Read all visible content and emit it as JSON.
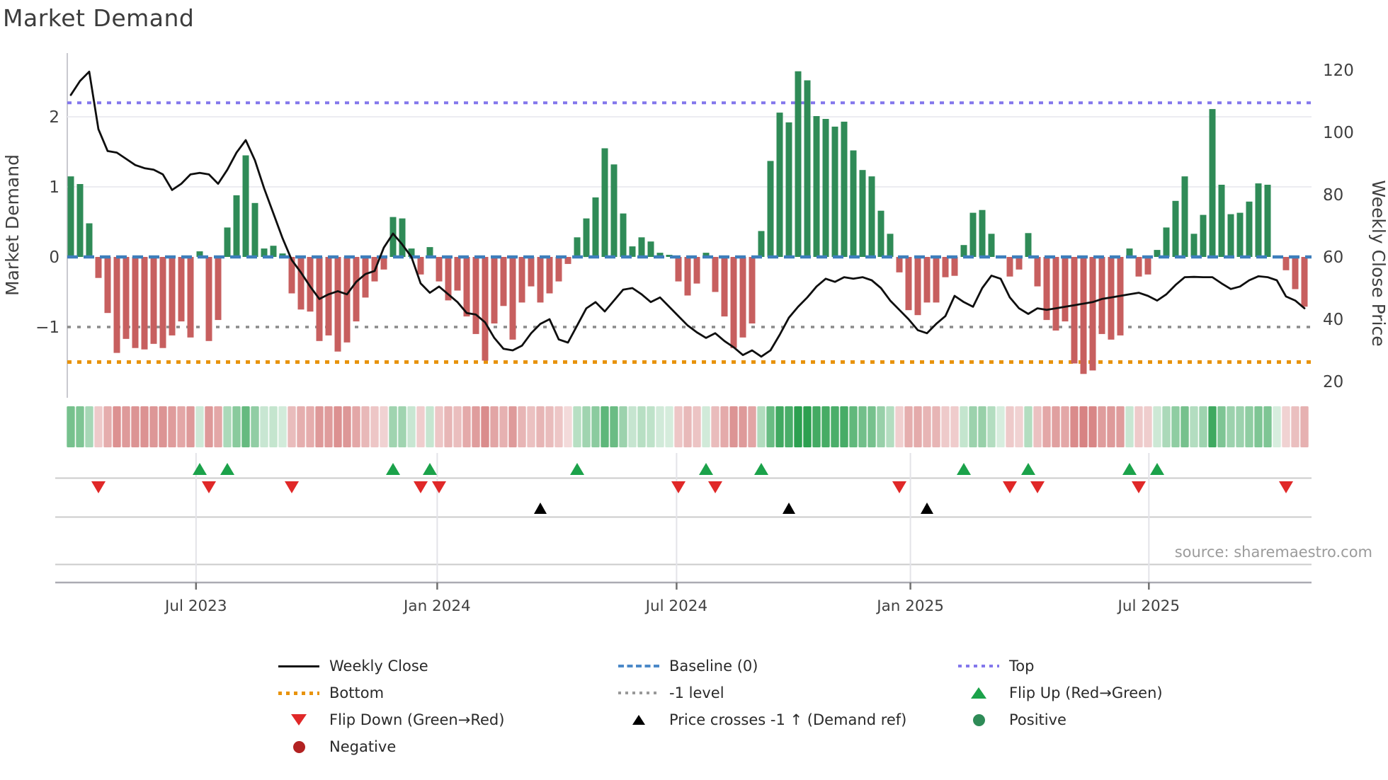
{
  "title": "Market Demand",
  "source_note": "source: sharemaestro.com",
  "axes": {
    "left_label": "Market Demand",
    "right_label": "Weekly Close Price",
    "left_tick_labels": [
      "2",
      "1",
      "0",
      "−1"
    ],
    "left_tick_values": [
      2,
      1,
      0,
      -1
    ],
    "right_tick_labels": [
      "120",
      "100",
      "80",
      "60",
      "40",
      "20"
    ],
    "right_tick_values": [
      120,
      100,
      80,
      60,
      40,
      20
    ],
    "x_ticks": [
      {
        "label": "Jul 2023",
        "week": 13.6
      },
      {
        "label": "Jan 2024",
        "week": 39.8
      },
      {
        "label": "Jul 2024",
        "week": 65.8
      },
      {
        "label": "Jan 2025",
        "week": 91.2
      },
      {
        "label": "Jul 2025",
        "week": 117.1
      }
    ]
  },
  "chart_data": {
    "type": "combo-bar-line",
    "x_unit": "week",
    "n_weeks": 135,
    "ylim_left": [
      -2.0,
      2.9
    ],
    "ylim_right": [
      14,
      124
    ],
    "grid_left_values": [
      1,
      2
    ],
    "ref_lines": {
      "baseline": {
        "value": 0,
        "label": "Baseline (0)",
        "color": "#3d7ebc",
        "style": "dashed"
      },
      "top": {
        "value": 2.2,
        "label": "Top",
        "color": "#8377ec",
        "style": "dotted"
      },
      "minus_one": {
        "value": -1,
        "label": "-1 level",
        "color": "#8a8a8a",
        "style": "dotted"
      },
      "bottom": {
        "value": -1.5,
        "label": "Bottom",
        "color": "#e8930c",
        "style": "dotted"
      }
    },
    "series": [
      {
        "name": "Market Demand",
        "type": "bar",
        "axis": "left",
        "color_positive": "#2f8b57",
        "color_negative": "#c75f5f",
        "values": [
          1.15,
          1.04,
          0.48,
          -0.3,
          -0.8,
          -1.37,
          -1.17,
          -1.3,
          -1.32,
          -1.24,
          -1.3,
          -1.12,
          -0.92,
          -1.15,
          0.08,
          -1.2,
          -0.9,
          0.42,
          0.88,
          1.45,
          0.77,
          0.12,
          0.16,
          0.05,
          -0.52,
          -0.75,
          -0.78,
          -1.2,
          -1.12,
          -1.35,
          -1.22,
          -0.92,
          -0.58,
          -0.35,
          -0.18,
          0.57,
          0.55,
          0.12,
          -0.25,
          0.14,
          -0.35,
          -0.62,
          -0.48,
          -0.85,
          -1.1,
          -1.48,
          -0.95,
          -0.7,
          -1.18,
          -0.65,
          -0.42,
          -0.65,
          -0.52,
          -0.35,
          -0.1,
          0.28,
          0.55,
          0.85,
          1.55,
          1.32,
          0.62,
          0.15,
          0.28,
          0.22,
          0.06,
          0.03,
          -0.35,
          -0.55,
          -0.38,
          0.06,
          -0.5,
          -0.85,
          -1.3,
          -1.15,
          -0.95,
          0.37,
          1.37,
          2.06,
          1.92,
          2.65,
          2.52,
          2.01,
          1.97,
          1.86,
          1.93,
          1.52,
          1.24,
          1.15,
          0.66,
          0.33,
          -0.22,
          -0.76,
          -0.83,
          -0.65,
          -0.65,
          -0.29,
          -0.27,
          0.17,
          0.63,
          0.67,
          0.33,
          0.02,
          -0.28,
          -0.18,
          0.34,
          -0.42,
          -0.9,
          -1.05,
          -0.92,
          -1.52,
          -1.67,
          -1.62,
          -1.1,
          -1.18,
          -1.12,
          0.12,
          -0.28,
          -0.25,
          0.1,
          0.42,
          0.8,
          1.15,
          0.33,
          0.6,
          2.11,
          1.03,
          0.61,
          0.63,
          0.79,
          1.05,
          1.03,
          0.02,
          -0.19,
          -0.46,
          -0.71
        ]
      },
      {
        "name": "Weekly Close",
        "type": "line",
        "axis": "right",
        "color": "#0f0f0f",
        "values": [
          112,
          116.5,
          119.5,
          101,
          94,
          93.5,
          91.5,
          89.5,
          88.5,
          88,
          86.5,
          81.5,
          83.5,
          86.5,
          87,
          86.5,
          83.5,
          88,
          93.5,
          97.5,
          91,
          82,
          74,
          66,
          59,
          55,
          50.5,
          46.5,
          48,
          49,
          48,
          52,
          54.5,
          55.5,
          63,
          67.5,
          64,
          60,
          51.5,
          48.5,
          50.5,
          48,
          45.5,
          42,
          41.5,
          39,
          34,
          30.5,
          30,
          31.5,
          35.5,
          38.5,
          40,
          33.5,
          32.5,
          38,
          43.5,
          45.5,
          42.5,
          46,
          49.5,
          50,
          48,
          45.5,
          47,
          44,
          41,
          38,
          35.8,
          34,
          35.5,
          33,
          31,
          28.5,
          30,
          28,
          30,
          35,
          40.5,
          44,
          47,
          50.5,
          53,
          52,
          53.5,
          53,
          53.5,
          52.5,
          50,
          46,
          43,
          40,
          36.5,
          35.5,
          38.5,
          41,
          47.5,
          45.5,
          44,
          50,
          54,
          53,
          47,
          43.5,
          41.7,
          43.5,
          43,
          43.5,
          44,
          44.5,
          45,
          45.5,
          46.5,
          47,
          47.5,
          48,
          48.5,
          47.5,
          46,
          48,
          51,
          53.5,
          53.6,
          53.5,
          53.5,
          51.5,
          49.7,
          50.5,
          52.5,
          53.8,
          53.5,
          52.5,
          47.3,
          46,
          43.5
        ]
      }
    ],
    "heatmap_strip": {
      "note": "weekly demand state strip, green=positive red=negative, intensity ~ |value|",
      "base_green": [
        44,
        160,
        80
      ],
      "base_red": [
        205,
        100,
        100
      ]
    },
    "markers": {
      "flip_up_weeks": [
        14,
        17,
        35,
        39,
        55,
        69,
        75,
        97,
        104,
        115,
        118
      ],
      "flip_down_weeks": [
        3,
        15,
        24,
        38,
        40,
        66,
        70,
        90,
        102,
        105,
        116,
        132
      ],
      "price_cross_weeks": [
        51,
        78,
        93
      ],
      "flip_up_color": "#1ba24a",
      "flip_down_color": "#e02828",
      "price_cross_color": "#000000"
    }
  },
  "legend": {
    "items": [
      {
        "label": "Weekly Close",
        "swatch": "line-black"
      },
      {
        "label": "Baseline (0)",
        "swatch": "dash-blue"
      },
      {
        "label": "Top",
        "swatch": "dot-purple"
      },
      {
        "label": "Bottom",
        "swatch": "dot-orange"
      },
      {
        "label": "-1 level",
        "swatch": "dot-gray"
      },
      {
        "label": "Flip Up (Red→Green)",
        "swatch": "tri-up-green"
      },
      {
        "label": "Flip Down (Green→Red)",
        "swatch": "tri-down-red"
      },
      {
        "label": "Price crosses -1 ↑ (Demand ref)",
        "swatch": "tri-up-black"
      },
      {
        "label": "Positive",
        "swatch": "circle-green"
      },
      {
        "label": "Negative",
        "swatch": "circle-darkred"
      }
    ]
  },
  "colors": {
    "bar_green": "#2f8b57",
    "bar_red": "#c75f5f",
    "line_black": "#0f0f0f",
    "baseline_blue": "#3d7ebc",
    "top_purple": "#8377ec",
    "bottom_orange": "#e8930c",
    "minus1_gray": "#8a8a8a",
    "grid": "#ececf1",
    "axis_text": "#404040",
    "spine": "#c9c9cf"
  }
}
